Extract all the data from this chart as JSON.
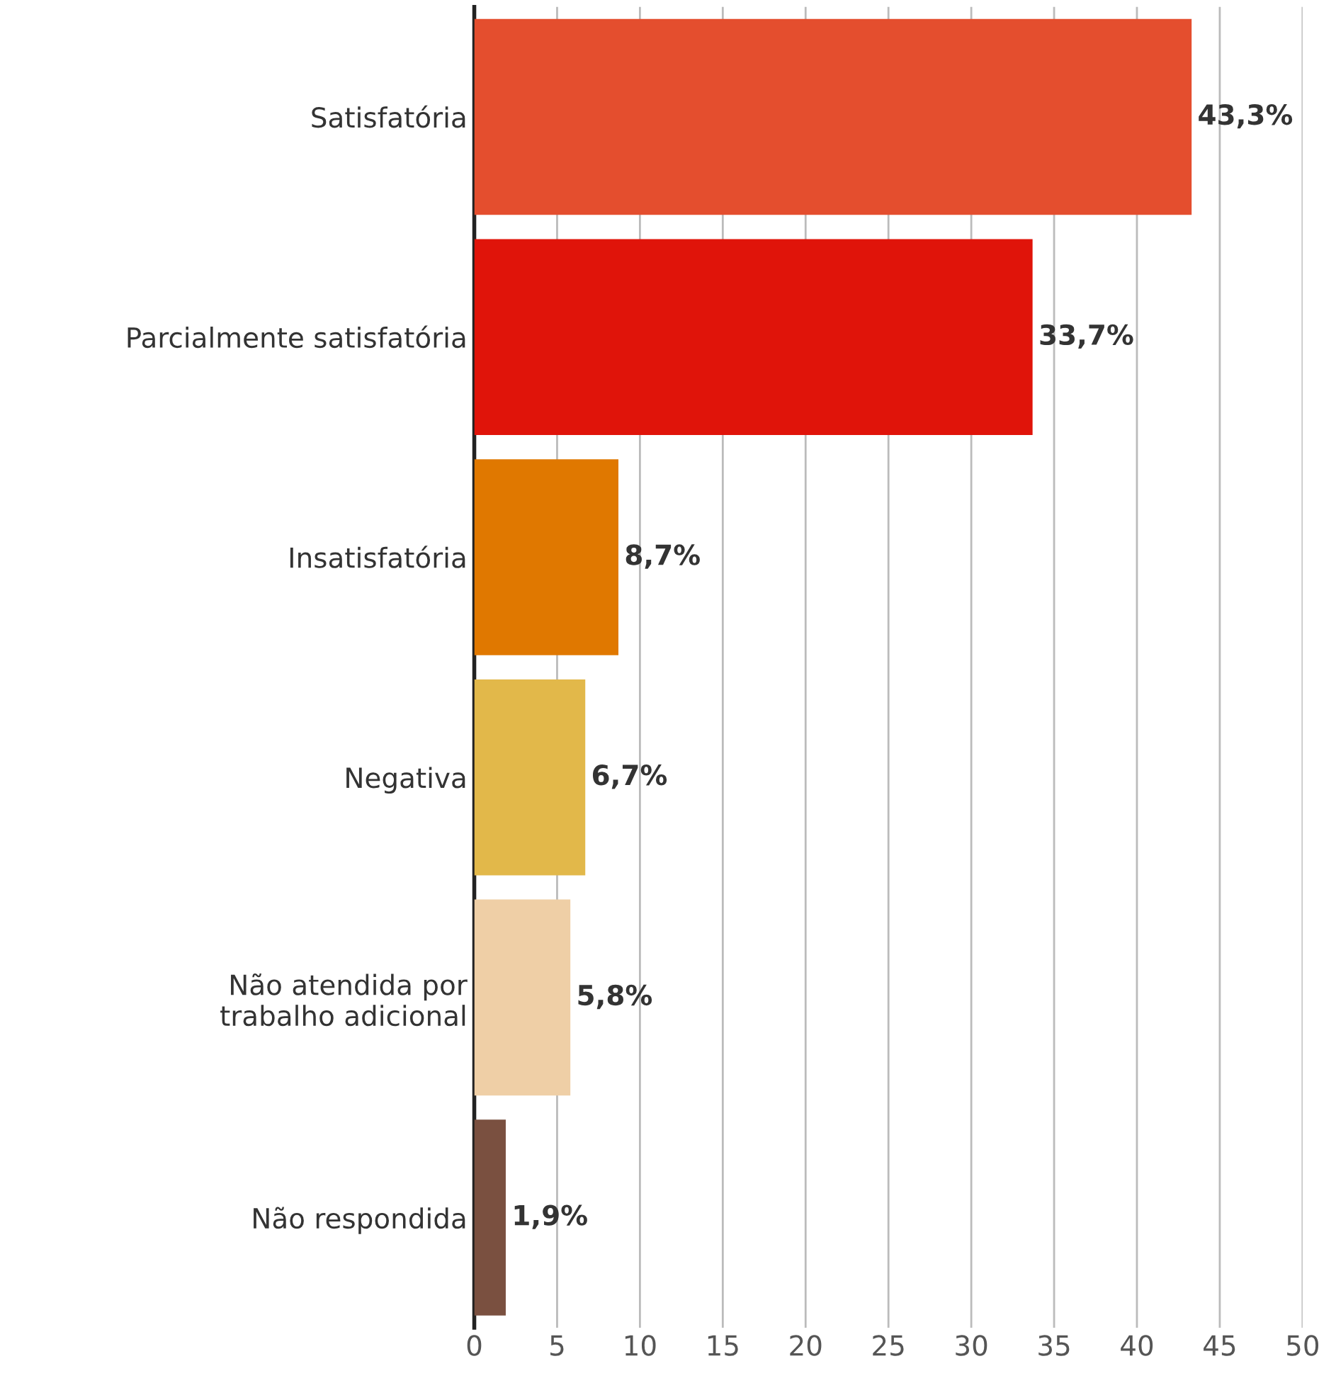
{
  "chart_data": {
    "type": "bar",
    "orientation": "horizontal",
    "categories": [
      "Satisfatória",
      "Parcialmente satisfatória",
      "Insatisfatória",
      "Negativa",
      "Não atendida por\ntrabalho adicional",
      "Não respondida"
    ],
    "values": [
      43.3,
      33.7,
      8.7,
      6.7,
      5.8,
      1.9
    ],
    "colors": [
      "#e44e2e",
      "#e0140a",
      "#e07800",
      "#e2b84a",
      "#efcfa6",
      "#7a5040"
    ],
    "value_labels": [
      "43,3%",
      "33,7%",
      "8,7%",
      "6,7%",
      "5,8%",
      "1,9%"
    ],
    "xlim": [
      0,
      50
    ],
    "xticks": [
      0,
      5,
      10,
      15,
      20,
      25,
      30,
      35,
      40,
      45,
      50
    ],
    "grid": "x",
    "legend": false
  }
}
